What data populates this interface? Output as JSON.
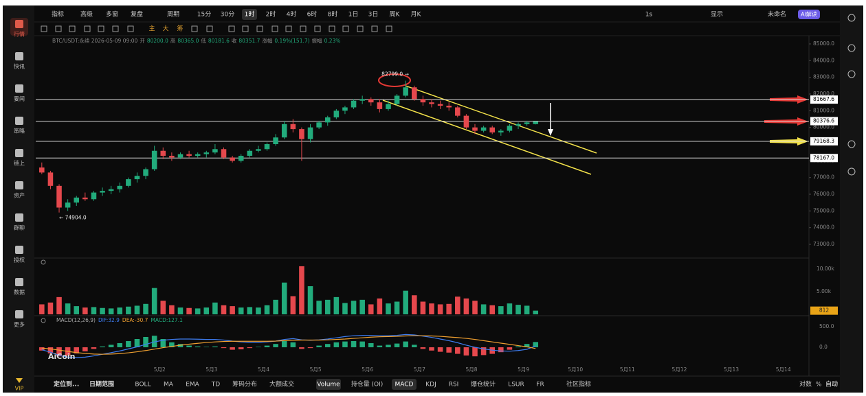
{
  "sidebar": {
    "items": [
      "行情",
      "快讯",
      "要闻",
      "策略",
      "链上",
      "资产",
      "群聊",
      "授权",
      "数据",
      "更多"
    ],
    "active": 0,
    "vip": "VIP"
  },
  "toolbar": {
    "left": [
      "指标",
      "高级",
      "多窗",
      "复盘"
    ],
    "period": "周期",
    "intervals": [
      "15分",
      "30分",
      "1时",
      "2时",
      "4时",
      "6时",
      "8时",
      "1日",
      "3日",
      "周K",
      "月K"
    ],
    "active_interval": 2,
    "speed": "1s",
    "display": "显示",
    "layout": "未命名",
    "ai": "AI解读"
  },
  "drawbar": [
    "主",
    "大",
    "筹"
  ],
  "info": {
    "symbol": "BTC/USDT:永续 2026-05-09 09:00",
    "fields": [
      [
        "开",
        "80200.0"
      ],
      [
        "高",
        "80365.0"
      ],
      [
        "低",
        "80181.6"
      ],
      [
        "收",
        "80351.7"
      ],
      [
        "涨幅",
        "0.19%(151.7)"
      ],
      [
        "振幅",
        "0.23%"
      ]
    ]
  },
  "watermark": "AiCoin",
  "chart_data": [
    {
      "type": "candlestick",
      "up_color": "#22ab7c",
      "down_color": "#e5484d",
      "grid": false,
      "candles": [
        [
          77600,
          77900,
          77200,
          77300
        ],
        [
          77300,
          77400,
          76300,
          76500
        ],
        [
          76500,
          76600,
          74904,
          75200
        ],
        [
          75200,
          75700,
          75000,
          75500
        ],
        [
          75500,
          75900,
          75300,
          75800
        ],
        [
          75800,
          76100,
          75600,
          75700
        ],
        [
          75700,
          76200,
          75600,
          76100
        ],
        [
          76100,
          76400,
          75900,
          76200
        ],
        [
          76200,
          76500,
          76000,
          76300
        ],
        [
          76300,
          76700,
          76100,
          76500
        ],
        [
          76500,
          77000,
          76400,
          76900
        ],
        [
          76900,
          77300,
          76700,
          77100
        ],
        [
          77100,
          77600,
          76900,
          77500
        ],
        [
          77500,
          78900,
          77400,
          78600
        ],
        [
          78600,
          78800,
          78100,
          78300
        ],
        [
          78300,
          78500,
          78000,
          78200
        ],
        [
          78200,
          78500,
          78100,
          78400
        ],
        [
          78400,
          78600,
          78200,
          78300
        ],
        [
          78300,
          78500,
          78200,
          78400
        ],
        [
          78400,
          78600,
          78200,
          78500
        ],
        [
          78500,
          79000,
          78400,
          78700
        ],
        [
          78700,
          78800,
          78100,
          78200
        ],
        [
          78200,
          78300,
          77900,
          78000
        ],
        [
          78000,
          78400,
          77900,
          78300
        ],
        [
          78300,
          78700,
          78200,
          78600
        ],
        [
          78600,
          78900,
          78500,
          78700
        ],
        [
          78700,
          79100,
          78600,
          79000
        ],
        [
          79000,
          79600,
          78900,
          79400
        ],
        [
          79400,
          80400,
          79300,
          80200
        ],
        [
          80200,
          80500,
          79700,
          79900
        ],
        [
          79900,
          80000,
          78000,
          79300
        ],
        [
          79300,
          80200,
          79100,
          80000
        ],
        [
          80000,
          80400,
          79900,
          80300
        ],
        [
          80300,
          80700,
          80100,
          80600
        ],
        [
          80600,
          81100,
          80500,
          81000
        ],
        [
          81000,
          81300,
          80800,
          81200
        ],
        [
          81200,
          81700,
          81100,
          81600
        ],
        [
          81600,
          81900,
          81400,
          81700
        ],
        [
          81700,
          81800,
          81300,
          81500
        ],
        [
          81500,
          81700,
          80900,
          81100
        ],
        [
          81100,
          81600,
          81000,
          81400
        ],
        [
          81400,
          82000,
          81300,
          81900
        ],
        [
          81900,
          82799,
          81800,
          82400
        ],
        [
          82400,
          82500,
          81600,
          81700
        ],
        [
          81700,
          81900,
          81300,
          81500
        ],
        [
          81500,
          81700,
          81200,
          81400
        ],
        [
          81400,
          81600,
          81100,
          81300
        ],
        [
          81300,
          81500,
          81000,
          81200
        ],
        [
          81200,
          81300,
          80600,
          80700
        ],
        [
          80700,
          80800,
          79900,
          80000
        ],
        [
          80000,
          80200,
          79600,
          79800
        ],
        [
          79800,
          80100,
          79700,
          80000
        ],
        [
          80000,
          80100,
          79600,
          79700
        ],
        [
          79700,
          79900,
          79500,
          79800
        ],
        [
          79800,
          80200,
          79700,
          80100
        ],
        [
          80100,
          80300,
          79900,
          80200
        ],
        [
          80200,
          80400,
          80100,
          80300
        ],
        [
          80200,
          80365,
          80181.6,
          80351.7
        ]
      ],
      "xlim": [
        -0.7,
        88.4
      ],
      "xticks": [
        {
          "value": 13.6,
          "label": "5月2"
        },
        {
          "value": 19.6,
          "label": "5月3"
        },
        {
          "value": 25.6,
          "label": "5月4"
        },
        {
          "value": 31.6,
          "label": "5月5"
        },
        {
          "value": 37.6,
          "label": "5月6"
        },
        {
          "value": 43.6,
          "label": "5月7"
        },
        {
          "value": 49.6,
          "label": "5月8"
        },
        {
          "value": 55.6,
          "label": "5月9"
        },
        {
          "value": 61.6,
          "label": "5月10"
        },
        {
          "value": 67.6,
          "label": "5月11"
        },
        {
          "value": 73.6,
          "label": "5月12"
        },
        {
          "value": 79.6,
          "label": "5月13"
        },
        {
          "value": 85.6,
          "label": "5月14"
        }
      ],
      "ylim": [
        72219,
        85493
      ],
      "yticks": [
        {
          "value": 85000,
          "label": "85000.0"
        },
        {
          "value": 84000,
          "label": "84000.0"
        },
        {
          "value": 83000,
          "label": "83000.0"
        },
        {
          "value": 82000,
          "label": "82000.0"
        },
        {
          "value": 81000,
          "label": "81000.0"
        },
        {
          "value": 80000,
          "label": "80000.0"
        },
        {
          "value": 79000,
          "label": "79000.0"
        },
        {
          "value": 78000,
          "label": "78000.0"
        },
        {
          "value": 77000,
          "label": "77000.0"
        },
        {
          "value": 76000,
          "label": "76000.0"
        },
        {
          "value": 75000,
          "label": "75000.0"
        },
        {
          "value": 74000,
          "label": "74000.0"
        },
        {
          "value": 73000,
          "label": "73000.0"
        }
      ],
      "levels": [
        81667.6,
        80376.6,
        79168.3,
        {
          "value": 78167,
          "label": "78167.0"
        }
      ],
      "high_label": "82799.0 →",
      "low_label": "← 74904.0"
    },
    {
      "type": "bar",
      "values": [
        2200,
        2600,
        3800,
        2400,
        1800,
        1500,
        1600,
        1400,
        1300,
        1500,
        1700,
        1900,
        2300,
        5800,
        3000,
        2000,
        1500,
        1400,
        1300,
        1500,
        2600,
        2000,
        1800,
        1500,
        1600,
        1500,
        2000,
        3200,
        7000,
        4000,
        10600,
        6200,
        3000,
        3200,
        3800,
        2500,
        3000,
        3200,
        2200,
        3500,
        2400,
        2800,
        5200,
        4200,
        2800,
        2400,
        2200,
        2300,
        3900,
        3500,
        3000,
        2200,
        2000,
        1800,
        2400,
        2100,
        1900,
        812
      ],
      "ylim": [
        0,
        11800
      ],
      "yticks": [
        {
          "value": 5000,
          "label": "5.00k"
        },
        {
          "value": 10000,
          "label": "10.00k"
        }
      ],
      "last_color": "#e8a317"
    },
    {
      "type": "macd",
      "title": "MACD(12,26,9)",
      "legend": [
        "DIF:32.9",
        "DEA:-30.7",
        "MACD:127.1"
      ],
      "ylim": [
        -567,
        733
      ],
      "yticks": [
        {
          "value": 500,
          "label": "500.0"
        },
        {
          "value": 0,
          "label": "0.0"
        }
      ],
      "hist": [
        -80,
        -150,
        -220,
        -200,
        -150,
        -100,
        -40,
        20,
        60,
        100,
        150,
        200,
        250,
        280,
        200,
        120,
        80,
        40,
        20,
        10,
        20,
        -20,
        -60,
        -50,
        -20,
        10,
        40,
        80,
        150,
        120,
        -40,
        -20,
        40,
        80,
        120,
        140,
        150,
        140,
        100,
        40,
        60,
        90,
        140,
        60,
        -40,
        -80,
        -110,
        -130,
        -160,
        -200,
        -220,
        -190,
        -160,
        -120,
        -60,
        20,
        80,
        127.1
      ],
      "series": [
        {
          "name": "DIF",
          "color": "#3d7cf0",
          "values": [
            -60,
            -120,
            -200,
            -240,
            -250,
            -240,
            -210,
            -170,
            -130,
            -90,
            -40,
            10,
            70,
            130,
            170,
            190,
            200,
            200,
            195,
            190,
            190,
            175,
            150,
            130,
            120,
            120,
            130,
            150,
            190,
            210,
            180,
            170,
            180,
            200,
            230,
            260,
            280,
            290,
            290,
            280,
            280,
            290,
            310,
            300,
            270,
            240,
            200,
            160,
            110,
            50,
            0,
            -40,
            -70,
            -90,
            -95,
            -80,
            -50,
            32.9
          ]
        },
        {
          "name": "DEA",
          "color": "#f0a030",
          "values": [
            -20,
            -40,
            -70,
            -100,
            -130,
            -150,
            -165,
            -170,
            -165,
            -155,
            -135,
            -110,
            -80,
            -45,
            -10,
            20,
            50,
            75,
            95,
            115,
            130,
            140,
            145,
            145,
            145,
            145,
            145,
            150,
            160,
            170,
            175,
            175,
            175,
            180,
            190,
            200,
            215,
            230,
            245,
            255,
            260,
            265,
            275,
            280,
            280,
            275,
            265,
            250,
            235,
            215,
            190,
            160,
            130,
            100,
            70,
            40,
            10,
            -30.7
          ]
        }
      ]
    }
  ],
  "bottom_bar": {
    "locate": "定位到...",
    "range": "日期范围",
    "indicators": [
      "BOLL",
      "MA",
      "EMA",
      "TD",
      "筹码分布",
      "大额成交"
    ],
    "subs": [
      "Volume",
      "持仓量 (OI)",
      "MACD",
      "KDJ",
      "RSI",
      "爆仓统计",
      "LSUR",
      "FR"
    ],
    "active_subs": [
      0,
      2
    ],
    "community": "社区指标",
    "right": [
      "对数",
      "%",
      "自动"
    ]
  }
}
